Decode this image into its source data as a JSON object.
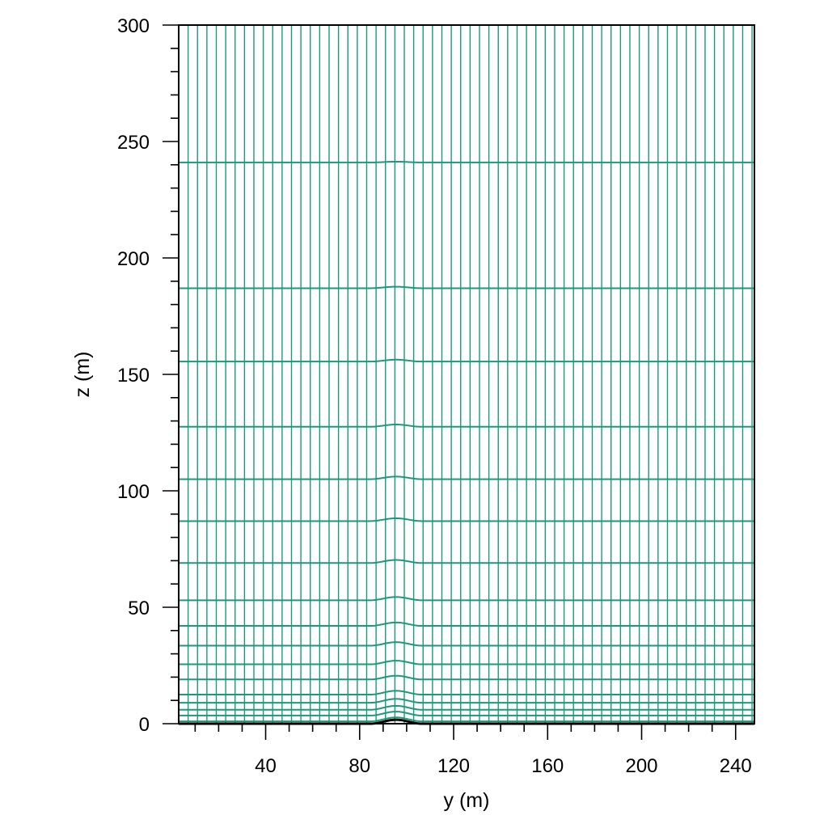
{
  "chart_data": {
    "type": "line",
    "title": "",
    "xlabel": "y (m)",
    "ylabel": "z (m)",
    "xlim": [
      3,
      248
    ],
    "ylim": [
      0,
      300
    ],
    "x_ticks": [
      40,
      80,
      120,
      160,
      200,
      240
    ],
    "x_tick_labels": [
      "40",
      "80",
      "120",
      "160",
      "200",
      "240"
    ],
    "y_ticks": [
      0,
      50,
      100,
      150,
      200,
      250,
      300
    ],
    "y_tick_labels": [
      "0",
      "50",
      "100",
      "150",
      "200",
      "250",
      "300"
    ],
    "grid_color": "#1a9a7a",
    "terrain_color": "#000000",
    "vertical_grid_lines": {
      "start": 3,
      "spacing": 4,
      "end": 247
    },
    "horizontal_grid_levels": [
      1,
      3.5,
      6,
      9,
      12.5,
      19,
      25.5,
      33.5,
      42,
      53,
      69,
      87,
      105,
      127.5,
      155.5,
      187,
      241
    ],
    "terrain_bump": {
      "center": 95.5,
      "half_width": 11,
      "height": 1.7
    }
  }
}
